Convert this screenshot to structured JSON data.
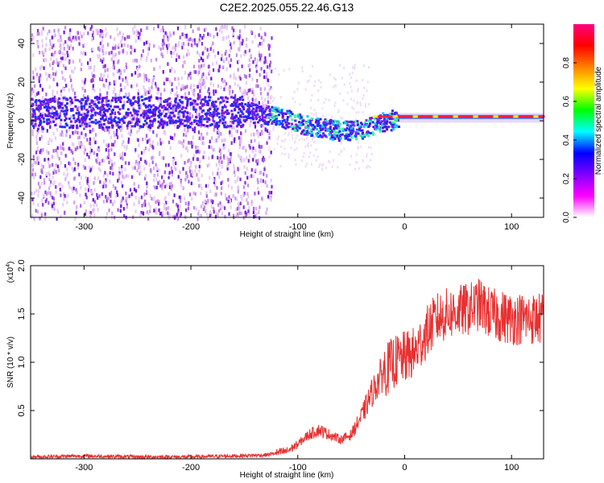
{
  "title": "C2E2.2025.055.22.46.G13",
  "chart_data": [
    {
      "type": "heatmap",
      "xlabel": "Height of straight line (km)",
      "ylabel": "Frequency (Hz)",
      "xlim": [
        -350,
        130
      ],
      "ylim": [
        -50,
        50
      ],
      "xticks": [
        -300,
        -200,
        -100,
        0,
        100
      ],
      "yticks": [
        -40,
        -20,
        0,
        20,
        40
      ],
      "colorbar": {
        "label": "Normalized spectral amplitude",
        "range": [
          0,
          1
        ],
        "ticks": [
          "0.0",
          "0.2",
          "0.4",
          "0.6",
          "0.8"
        ],
        "colors": [
          "#ffffff",
          "#ff00ff",
          "#8000ff",
          "#0000ff",
          "#00ffff",
          "#00ff00",
          "#ffff00",
          "#ff8000",
          "#ff0000",
          "#ff0080"
        ]
      },
      "ridge": {
        "x": [
          -350,
          -300,
          -250,
          -200,
          -150,
          -120,
          -100,
          -80,
          -60,
          -40,
          -20,
          0,
          50,
          130
        ],
        "y": [
          4,
          5,
          5,
          5,
          5,
          3,
          -1,
          -3,
          -5,
          -4,
          0,
          2,
          2,
          2
        ]
      }
    },
    {
      "type": "line",
      "xlabel": "Height of straight line (km)",
      "ylabel": "SNR (10 * v/v)",
      "yscale_label": "(x10",
      "yscale_exp": "4",
      "yscale_close": ")",
      "xlim": [
        -350,
        130
      ],
      "ylim": [
        0,
        2.0
      ],
      "xticks": [
        -300,
        -200,
        -100,
        0,
        100
      ],
      "yticks": [
        "0.5",
        "1.0",
        "1.5",
        "2.0"
      ],
      "line_color": "#e83030",
      "series": [
        {
          "x": [
            -350,
            -300,
            -250,
            -200,
            -160,
            -130,
            -110,
            -100,
            -90,
            -80,
            -70,
            -60,
            -50,
            -40,
            -30,
            -20,
            -10,
            0,
            10,
            20,
            30,
            40,
            60,
            70,
            80,
            100,
            130
          ],
          "y": [
            0.02,
            0.03,
            0.02,
            0.02,
            0.03,
            0.04,
            0.08,
            0.15,
            0.25,
            0.3,
            0.25,
            0.2,
            0.25,
            0.45,
            0.7,
            0.9,
            1.0,
            1.05,
            1.1,
            1.3,
            1.45,
            1.5,
            1.55,
            1.6,
            1.5,
            1.45,
            1.45
          ]
        }
      ]
    }
  ]
}
